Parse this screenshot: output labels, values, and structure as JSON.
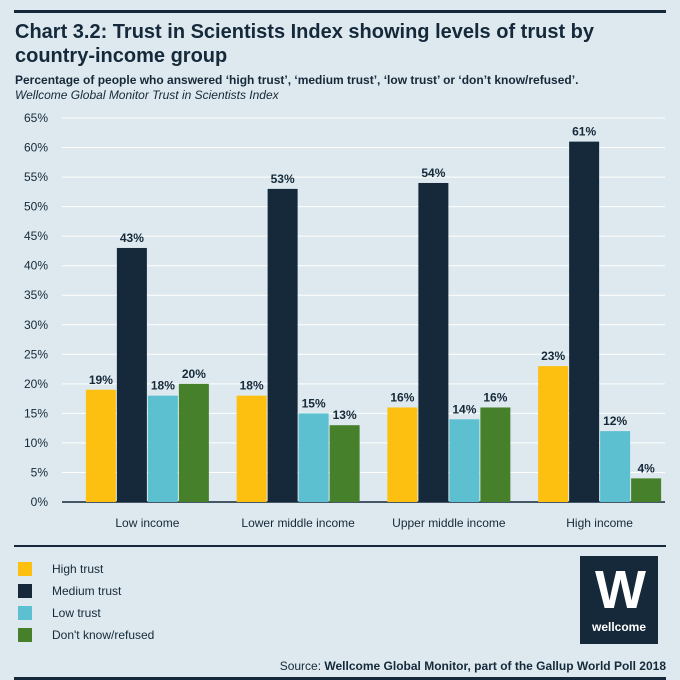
{
  "header": {
    "title": "Chart 3.2: Trust in Scientists Index showing levels of trust by country-income  group",
    "subtitle": "Percentage of people who answered ‘high trust’, ‘medium trust’, ‘low trust’ or ‘don’t know/refused’.",
    "source_note": "Wellcome Global Monitor Trust in Scientists Index"
  },
  "chart_data": {
    "type": "bar",
    "title": "Trust in Scientists Index showing levels of trust by country-income group",
    "xlabel": "",
    "ylabel": "",
    "ylim": [
      0,
      65
    ],
    "yticks": [
      0,
      5,
      10,
      15,
      20,
      25,
      30,
      35,
      40,
      45,
      50,
      55,
      60,
      65
    ],
    "ytick_labels": [
      "0%",
      "5%",
      "10%",
      "15%",
      "20%",
      "25%",
      "30%",
      "35%",
      "40%",
      "45%",
      "50%",
      "55%",
      "60%",
      "65%"
    ],
    "grid": true,
    "legend_position": "bottom-left",
    "categories": [
      "Low income",
      "Lower middle income",
      "Upper middle income",
      "High income"
    ],
    "series": [
      {
        "name": "High trust",
        "color": "#fdc010",
        "values": [
          19,
          18,
          16,
          23
        ],
        "labels": [
          "19%",
          "18%",
          "16%",
          "23%"
        ]
      },
      {
        "name": "Medium trust",
        "color": "#15293a",
        "values": [
          43,
          53,
          54,
          61
        ],
        "labels": [
          "43%",
          "53%",
          "54%",
          "61%"
        ]
      },
      {
        "name": "Low trust",
        "color": "#5cc0d1",
        "values": [
          18,
          15,
          14,
          12
        ],
        "labels": [
          "18%",
          "15%",
          "14%",
          "12%"
        ]
      },
      {
        "name": "Don't know/refused",
        "color": "#46802b",
        "values": [
          20,
          13,
          16,
          4
        ],
        "labels": [
          "20%",
          "13%",
          "16%",
          "4%"
        ]
      }
    ]
  },
  "legend": {
    "items": [
      {
        "label": "High trust",
        "color": "#fdc010"
      },
      {
        "label": "Medium trust",
        "color": "#15293a"
      },
      {
        "label": "Low trust",
        "color": "#5cc0d1"
      },
      {
        "label": "Don't know/refused",
        "color": "#46802b"
      }
    ]
  },
  "logo": {
    "mark": "W",
    "wordmark": "wellcome",
    "icon": "wellcome-logo-icon"
  },
  "footer": {
    "prefix": "Source: ",
    "text": "Wellcome Global Monitor, part of the Gallup World Poll 2018"
  }
}
